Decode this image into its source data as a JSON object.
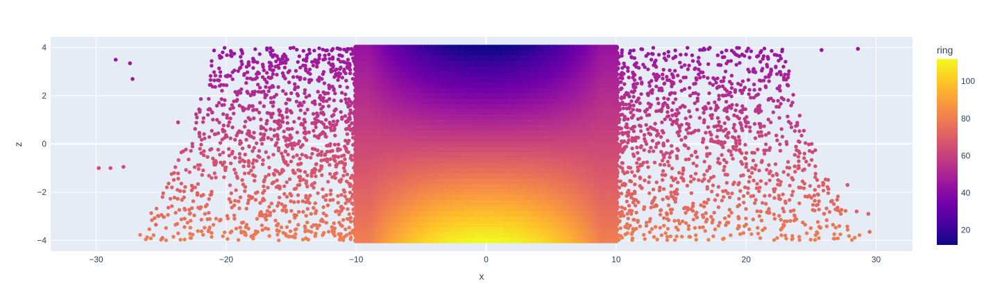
{
  "chart_data": {
    "type": "scatter",
    "title": "",
    "xlabel": "x",
    "ylabel": "z",
    "xlim": [
      -33.5,
      32.8
    ],
    "ylim": [
      -4.45,
      4.45
    ],
    "x_ticks": [
      -30,
      -20,
      -10,
      0,
      10,
      20,
      30
    ],
    "x_tick_labels": [
      "−30",
      "−20",
      "−10",
      "0",
      "10",
      "20",
      "30"
    ],
    "y_ticks": [
      -4,
      -2,
      0,
      2,
      4
    ],
    "y_tick_labels": [
      "−4",
      "−2",
      "0",
      "2",
      "4"
    ],
    "grid": true,
    "color_variable": "ring",
    "colorbar": {
      "title": "ring",
      "range": [
        12,
        112
      ],
      "ticks": [
        20,
        40,
        60,
        80,
        100
      ],
      "tick_labels": [
        "20",
        "40",
        "60",
        "80",
        "100"
      ],
      "colorscale": "Plasma"
    },
    "description_of_points": "Dense cylindrical band of points with |x| ≤ 10 and z from −4 to 4; sparser rings extend out to |x| ≈ 30. Colour (ring) rises from about 13 at z=4, x=0 to about 112 at z=−4, x=0.",
    "core_region": {
      "x": [
        -10,
        10
      ],
      "z": [
        -4,
        4
      ]
    },
    "sample_points": [
      {
        "x": -29.8,
        "z": -1.0,
        "ring": 64
      },
      {
        "x": -28.9,
        "z": -1.0,
        "ring": 64
      },
      {
        "x": -27.9,
        "z": -0.95,
        "ring": 64
      },
      {
        "x": -28.5,
        "z": 3.5,
        "ring": 45
      },
      {
        "x": -27.4,
        "z": 3.35,
        "ring": 45
      },
      {
        "x": -27.2,
        "z": 2.7,
        "ring": 46
      },
      {
        "x": -25.4,
        "z": -3.35,
        "ring": 72
      },
      {
        "x": -24.9,
        "z": -3.9,
        "ring": 74
      },
      {
        "x": -23.7,
        "z": 0.9,
        "ring": 57
      },
      {
        "x": 27.8,
        "z": -1.7,
        "ring": 67
      },
      {
        "x": 28.6,
        "z": 3.95,
        "ring": 44
      },
      {
        "x": 29.4,
        "z": -2.9,
        "ring": 71
      },
      {
        "x": 29.5,
        "z": -3.65,
        "ring": 73
      },
      {
        "x": 28.5,
        "z": -2.8,
        "ring": 71
      },
      {
        "x": 25.8,
        "z": 3.9,
        "ring": 44
      },
      {
        "x": 0.0,
        "z": 4.0,
        "ring": 13
      },
      {
        "x": 0.0,
        "z": 0.0,
        "ring": 62
      },
      {
        "x": 0.0,
        "z": -4.0,
        "ring": 112
      }
    ]
  }
}
